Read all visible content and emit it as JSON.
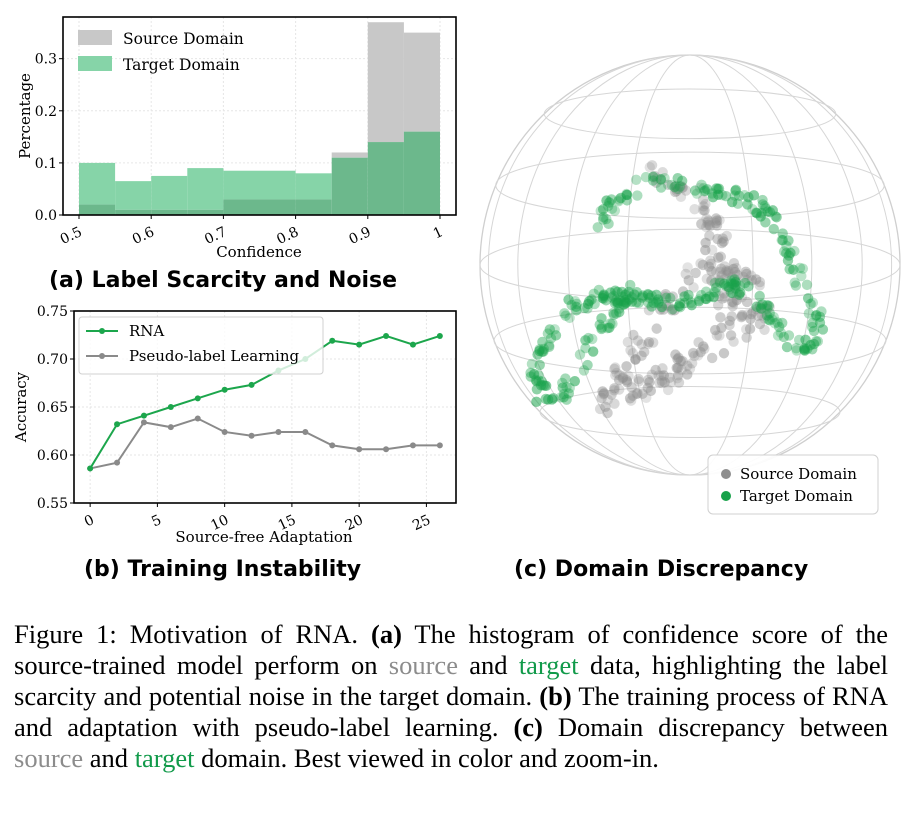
{
  "subcaptions": {
    "a": "(a) Label Scarcity and Noise",
    "b": "(b) Training Instability",
    "c": "(c) Domain Discrepancy"
  },
  "caption": {
    "label": "Figure 1:",
    "intro": " Motivation of RNA. ",
    "a_tag": "(a)",
    "a_text1": " The histogram of confidence score of the source-trained model perform on ",
    "source_word": "source",
    "and_word": " and ",
    "target_word": "target",
    "a_text2": " data, highlighting the label scarcity and potential noise in the target domain. ",
    "b_tag": "(b)",
    "b_text": " The training process of RNA and adaptation with pseudo-label learning.  ",
    "c_tag": "(c)",
    "c_text1": " Domain discrepancy between ",
    "source_word2": "source",
    "and_word2": " and ",
    "target_word2": "target",
    "c_text2": " domain. Best viewed in color and zoom-in."
  },
  "colors": {
    "source": "#c8c8c8",
    "target": "#86d4a8",
    "overlap": "#6cb88c",
    "rna": "#1ca64c",
    "pseudo": "#8a8a8a",
    "scatter_source": "#8e8e8e",
    "scatter_target": "#18a24a"
  },
  "chart_data": [
    {
      "type": "bar",
      "subtype": "overlaid-histogram",
      "xlabel": "Confidence",
      "ylabel": "Percentage",
      "xlim": [
        0.5,
        1.0
      ],
      "ylim": [
        0,
        0.38
      ],
      "xticks": [
        "0.5",
        "0.6",
        "0.7",
        "0.8",
        "0.9",
        "1"
      ],
      "xtick_values": [
        0.5,
        0.6,
        0.7,
        0.8,
        0.9,
        1.0
      ],
      "yticks": [
        "0.0",
        "0.1",
        "0.2",
        "0.3"
      ],
      "ytick_values": [
        0,
        0.1,
        0.2,
        0.3
      ],
      "bin_edges": [
        0.5,
        0.55,
        0.6,
        0.65,
        0.7,
        0.75,
        0.8,
        0.85,
        0.9,
        0.95,
        1.0
      ],
      "legend_position": "top-left",
      "series": [
        {
          "name": "Source Domain",
          "values": [
            0.02,
            0.01,
            0.01,
            0.01,
            0.03,
            0.03,
            0.03,
            0.12,
            0.37,
            0.35
          ]
        },
        {
          "name": "Target Domain",
          "values": [
            0.1,
            0.065,
            0.075,
            0.09,
            0.085,
            0.085,
            0.08,
            0.11,
            0.14,
            0.16
          ]
        }
      ]
    },
    {
      "type": "line",
      "xlabel": "Source-free Adaptation",
      "ylabel": "Accuracy",
      "xlim": [
        -1.2,
        27.2
      ],
      "ylim": [
        0.55,
        0.75
      ],
      "xticks": [
        "0",
        "5",
        "10",
        "15",
        "20",
        "25"
      ],
      "xtick_values": [
        0,
        5,
        10,
        15,
        20,
        25
      ],
      "yticks": [
        "0.55",
        "0.60",
        "0.65",
        "0.70",
        "0.75"
      ],
      "ytick_values": [
        0.55,
        0.6,
        0.65,
        0.7,
        0.75
      ],
      "legend_position": "top-left",
      "x": [
        0,
        2,
        4,
        6,
        8,
        10,
        12,
        14,
        16,
        18,
        20,
        22,
        24,
        26
      ],
      "series": [
        {
          "name": "RNA",
          "values": [
            0.586,
            0.632,
            0.641,
            0.65,
            0.659,
            0.668,
            0.673,
            0.688,
            0.7,
            0.719,
            0.715,
            0.724,
            0.715,
            0.724
          ]
        },
        {
          "name": "Pseudo-label Learning",
          "values": [
            0.586,
            0.592,
            0.634,
            0.629,
            0.638,
            0.624,
            0.62,
            0.624,
            0.624,
            0.61,
            0.606,
            0.606,
            0.61,
            0.61
          ]
        }
      ]
    },
    {
      "type": "scatter",
      "subtype": "points-on-sphere",
      "legend_position": "bottom-right",
      "series": [
        {
          "name": "Source Domain"
        },
        {
          "name": "Target Domain"
        }
      ]
    }
  ]
}
